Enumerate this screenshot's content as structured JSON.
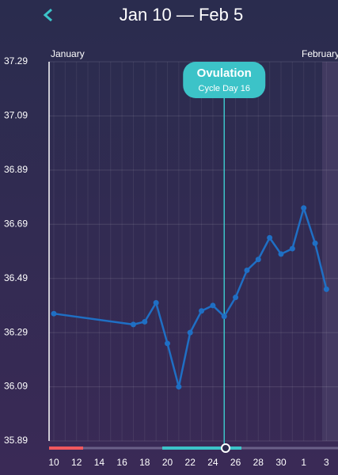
{
  "chart_data": {
    "type": "line",
    "title": "Jan 10 — Feb 5",
    "months": [
      "January",
      "February"
    ],
    "categories": [
      "10",
      null,
      "12",
      null,
      "14",
      null,
      "16",
      null,
      "18",
      null,
      "20",
      null,
      "22",
      null,
      "24",
      null,
      "26",
      null,
      "28",
      null,
      "30",
      null,
      "1",
      null,
      "3"
    ],
    "values": [
      36.36,
      null,
      null,
      null,
      null,
      null,
      null,
      36.32,
      36.33,
      36.4,
      36.25,
      36.09,
      36.29,
      36.37,
      36.39,
      36.35,
      36.42,
      36.52,
      36.56,
      36.64,
      36.58,
      36.6,
      36.75,
      36.62,
      36.45
    ],
    "color": "#1f6fc4",
    "ylim": [
      35.89,
      37.29
    ],
    "yticks": [
      35.89,
      36.09,
      36.29,
      36.49,
      36.69,
      36.89,
      37.09,
      37.29
    ],
    "grid": true,
    "annotation": {
      "label": "Ovulation",
      "detail": "Cycle Day 16"
    }
  }
}
